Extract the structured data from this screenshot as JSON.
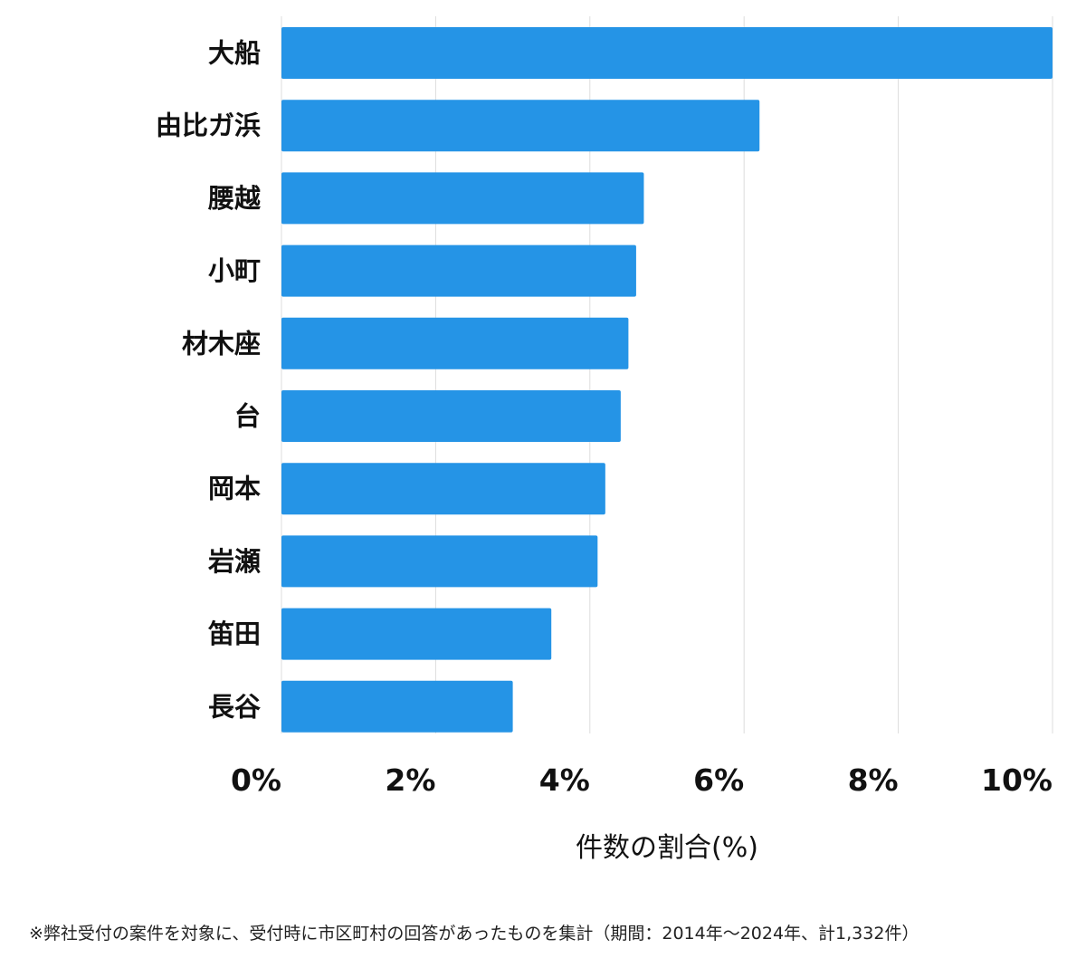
{
  "chart_data": {
    "type": "bar",
    "orientation": "horizontal",
    "categories": [
      "大船",
      "由比ガ浜",
      "腰越",
      "小町",
      "材木座",
      "台",
      "岡本",
      "岩瀬",
      "笛田",
      "長谷"
    ],
    "values": [
      10.0,
      6.2,
      4.7,
      4.6,
      4.5,
      4.4,
      4.2,
      4.1,
      3.5,
      3.0
    ],
    "xlim": [
      0,
      10
    ],
    "x_ticks": [
      0,
      2,
      4,
      6,
      8,
      10
    ],
    "x_tick_labels": [
      "0%",
      "2%",
      "4%",
      "6%",
      "8%",
      "10%"
    ],
    "xlabel": "件数の割合(%)",
    "ylabel": "",
    "title": "",
    "grid": "vertical",
    "legend": "none",
    "bar_color": "#2594e6",
    "grid_color": "#dddddd"
  },
  "footnote": "※弊社受付の案件を対象に、受付時に市区町村の回答があったものを集計（期間：2014年～2024年、計1,332件）"
}
